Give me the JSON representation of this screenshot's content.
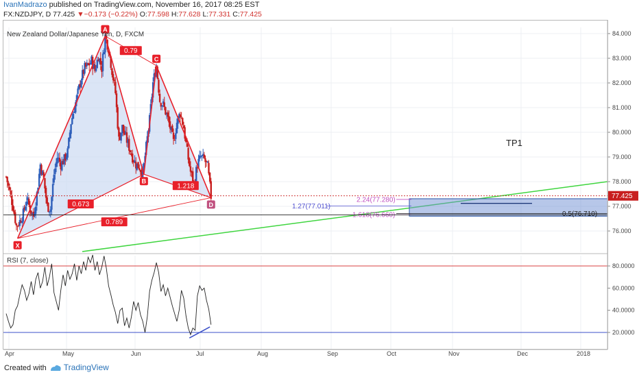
{
  "header": {
    "author": "IvanMadrazo",
    "published": " published on TradingView.com, November 16, 2017 08:25 EST",
    "symbol": "FX:NZDJPY, D",
    "last": "77.425",
    "change": "−0.173 (−0.22%)",
    "o_label": "O:",
    "o": "77.598",
    "h_label": "H:",
    "h": "77.628",
    "l_label": "L:",
    "l": "77.331",
    "c_label": "C:",
    "c": "77.425"
  },
  "main": {
    "title": "New Zealand Dollar/Japanese Yen, D, FXCM",
    "price_tag": "77.425",
    "tp_label": "TP1"
  },
  "rsi": {
    "title": "RSI (7, close)"
  },
  "footer": {
    "created": "Created with",
    "brand": "TradingView"
  },
  "colors": {
    "up": "#2f5fba",
    "down": "#c81e1e",
    "pattern": "#e8202a",
    "pattern_fill": "#cfdcf3",
    "green_trend": "#3fd53f",
    "rsi_line": "#222222",
    "rsi_band": "#d94040",
    "rsi_low": "#3b50c8",
    "zone": "#2e58a8"
  },
  "chart_data": [
    {
      "type": "candlestick",
      "title": "New Zealand Dollar/Japanese Yen, D, FXCM",
      "x_ticks": [
        "Apr",
        "May",
        "Jun",
        "Jul",
        "Aug",
        "Sep",
        "Oct",
        "Nov",
        "Dec",
        "2018"
      ],
      "y_ticks": [
        "76.000",
        "77.000",
        "78.000",
        "79.000",
        "80.000",
        "81.000",
        "82.000",
        "83.000",
        "84.000"
      ],
      "ylim": [
        75.3,
        84.3
      ],
      "last_price": 77.425,
      "close_path": [
        [
          0,
          78.2
        ],
        [
          3,
          77.6
        ],
        [
          6,
          77.0
        ],
        [
          9,
          76.2
        ],
        [
          12,
          76.4
        ],
        [
          15,
          76.7
        ],
        [
          18,
          77.3
        ],
        [
          21,
          76.9
        ],
        [
          24,
          76.6
        ],
        [
          27,
          77.5
        ],
        [
          30,
          78.7
        ],
        [
          33,
          78.1
        ],
        [
          36,
          77.0
        ],
        [
          39,
          76.9
        ],
        [
          42,
          78.3
        ],
        [
          45,
          79.0
        ],
        [
          48,
          78.7
        ],
        [
          51,
          78.9
        ],
        [
          54,
          79.2
        ],
        [
          57,
          80.4
        ],
        [
          60,
          81.0
        ],
        [
          63,
          81.6
        ],
        [
          66,
          82.2
        ],
        [
          69,
          82.6
        ],
        [
          72,
          82.7
        ],
        [
          75,
          82.9
        ],
        [
          78,
          82.5
        ],
        [
          81,
          83.1
        ],
        [
          84,
          82.6
        ],
        [
          87,
          83.9
        ],
        [
          90,
          83.4
        ],
        [
          93,
          82.5
        ],
        [
          96,
          81.6
        ],
        [
          99,
          79.7
        ],
        [
          102,
          80.2
        ],
        [
          105,
          79.8
        ],
        [
          108,
          79.4
        ],
        [
          111,
          79.0
        ],
        [
          114,
          78.7
        ],
        [
          117,
          78.6
        ],
        [
          120,
          78.3
        ],
        [
          123,
          79.4
        ],
        [
          126,
          80.5
        ],
        [
          129,
          82.0
        ],
        [
          132,
          82.7
        ],
        [
          135,
          81.3
        ],
        [
          138,
          81.1
        ],
        [
          141,
          80.7
        ],
        [
          144,
          80.2
        ],
        [
          147,
          79.6
        ],
        [
          150,
          80.4
        ],
        [
          153,
          80.8
        ],
        [
          156,
          80.2
        ],
        [
          159,
          79.2
        ],
        [
          162,
          78.4
        ],
        [
          165,
          77.9
        ],
        [
          168,
          78.7
        ],
        [
          171,
          79.0
        ],
        [
          174,
          78.9
        ],
        [
          177,
          78.6
        ],
        [
          180,
          77.4
        ]
      ],
      "pattern_XABCD": {
        "points": [
          {
            "label": "X",
            "day": 10,
            "price": 75.7
          },
          {
            "label": "A",
            "day": 87,
            "price": 83.9
          },
          {
            "label": "B",
            "day": 121,
            "price": 78.3
          },
          {
            "label": "C",
            "day": 132,
            "price": 82.7
          },
          {
            "label": "D",
            "day": 180,
            "price": 77.35
          }
        ],
        "ratios": [
          "0.673",
          "0.79",
          "1.218",
          "0.789"
        ]
      },
      "fib_levels": [
        {
          "label": "2.24(77.280)",
          "price": 77.28
        },
        {
          "label": "1.27(77.011)",
          "price": 77.011
        },
        {
          "label": "1.618(76.660)",
          "price": 76.66
        },
        {
          "label": "0.5(76.710)",
          "price": 76.71
        }
      ],
      "annotations": [
        "TP1"
      ]
    },
    {
      "type": "line",
      "title": "RSI (7, close)",
      "y_ticks": [
        "20.0000",
        "40.0000",
        "60.0000",
        "80.0000"
      ],
      "ylim": [
        10,
        95
      ],
      "bands": [
        80,
        20
      ],
      "series": [
        {
          "values": [
            [
              0,
              37
            ],
            [
              2,
              30
            ],
            [
              4,
              24
            ],
            [
              6,
              27
            ],
            [
              8,
              40
            ],
            [
              10,
              44
            ],
            [
              12,
              54
            ],
            [
              14,
              63
            ],
            [
              16,
              58
            ],
            [
              18,
              49
            ],
            [
              20,
              55
            ],
            [
              22,
              66
            ],
            [
              24,
              54
            ],
            [
              26,
              68
            ],
            [
              28,
              74
            ],
            [
              30,
              60
            ],
            [
              32,
              66
            ],
            [
              34,
              79
            ],
            [
              36,
              62
            ],
            [
              38,
              70
            ],
            [
              40,
              82
            ],
            [
              42,
              56
            ],
            [
              44,
              48
            ],
            [
              46,
              40
            ],
            [
              48,
              58
            ],
            [
              50,
              72
            ],
            [
              52,
              62
            ],
            [
              54,
              76
            ],
            [
              56,
              68
            ],
            [
              58,
              73
            ],
            [
              60,
              82
            ],
            [
              62,
              67
            ],
            [
              64,
              80
            ],
            [
              66,
              73
            ],
            [
              68,
              84
            ],
            [
              70,
              76
            ],
            [
              72,
              88
            ],
            [
              74,
              83
            ],
            [
              76,
              90
            ],
            [
              78,
              76
            ],
            [
              80,
              84
            ],
            [
              82,
              72
            ],
            [
              84,
              79
            ],
            [
              86,
              89
            ],
            [
              88,
              78
            ],
            [
              90,
              62
            ],
            [
              92,
              54
            ],
            [
              94,
              45
            ],
            [
              96,
              38
            ],
            [
              98,
              28
            ],
            [
              100,
              40
            ],
            [
              102,
              42
            ],
            [
              104,
              26
            ],
            [
              106,
              33
            ],
            [
              108,
              24
            ],
            [
              110,
              34
            ],
            [
              112,
              48
            ],
            [
              114,
              40
            ],
            [
              116,
              47
            ],
            [
              118,
              36
            ],
            [
              120,
              30
            ],
            [
              122,
              20
            ],
            [
              124,
              34
            ],
            [
              126,
              57
            ],
            [
              128,
              67
            ],
            [
              130,
              74
            ],
            [
              132,
              83
            ],
            [
              134,
              74
            ],
            [
              136,
              57
            ],
            [
              138,
              63
            ],
            [
              140,
              53
            ],
            [
              142,
              60
            ],
            [
              144,
              52
            ],
            [
              146,
              44
            ],
            [
              148,
              37
            ],
            [
              150,
              30
            ],
            [
              152,
              40
            ],
            [
              154,
              58
            ],
            [
              156,
              51
            ],
            [
              158,
              35
            ],
            [
              160,
              24
            ],
            [
              162,
              18
            ],
            [
              164,
              24
            ],
            [
              166,
              22
            ],
            [
              168,
              53
            ],
            [
              170,
              62
            ],
            [
              172,
              58
            ],
            [
              174,
              60
            ],
            [
              176,
              49
            ],
            [
              178,
              41
            ],
            [
              180,
              27
            ]
          ]
        }
      ],
      "trendline": [
        [
          161,
          15
        ],
        [
          179,
          25
        ]
      ]
    }
  ]
}
